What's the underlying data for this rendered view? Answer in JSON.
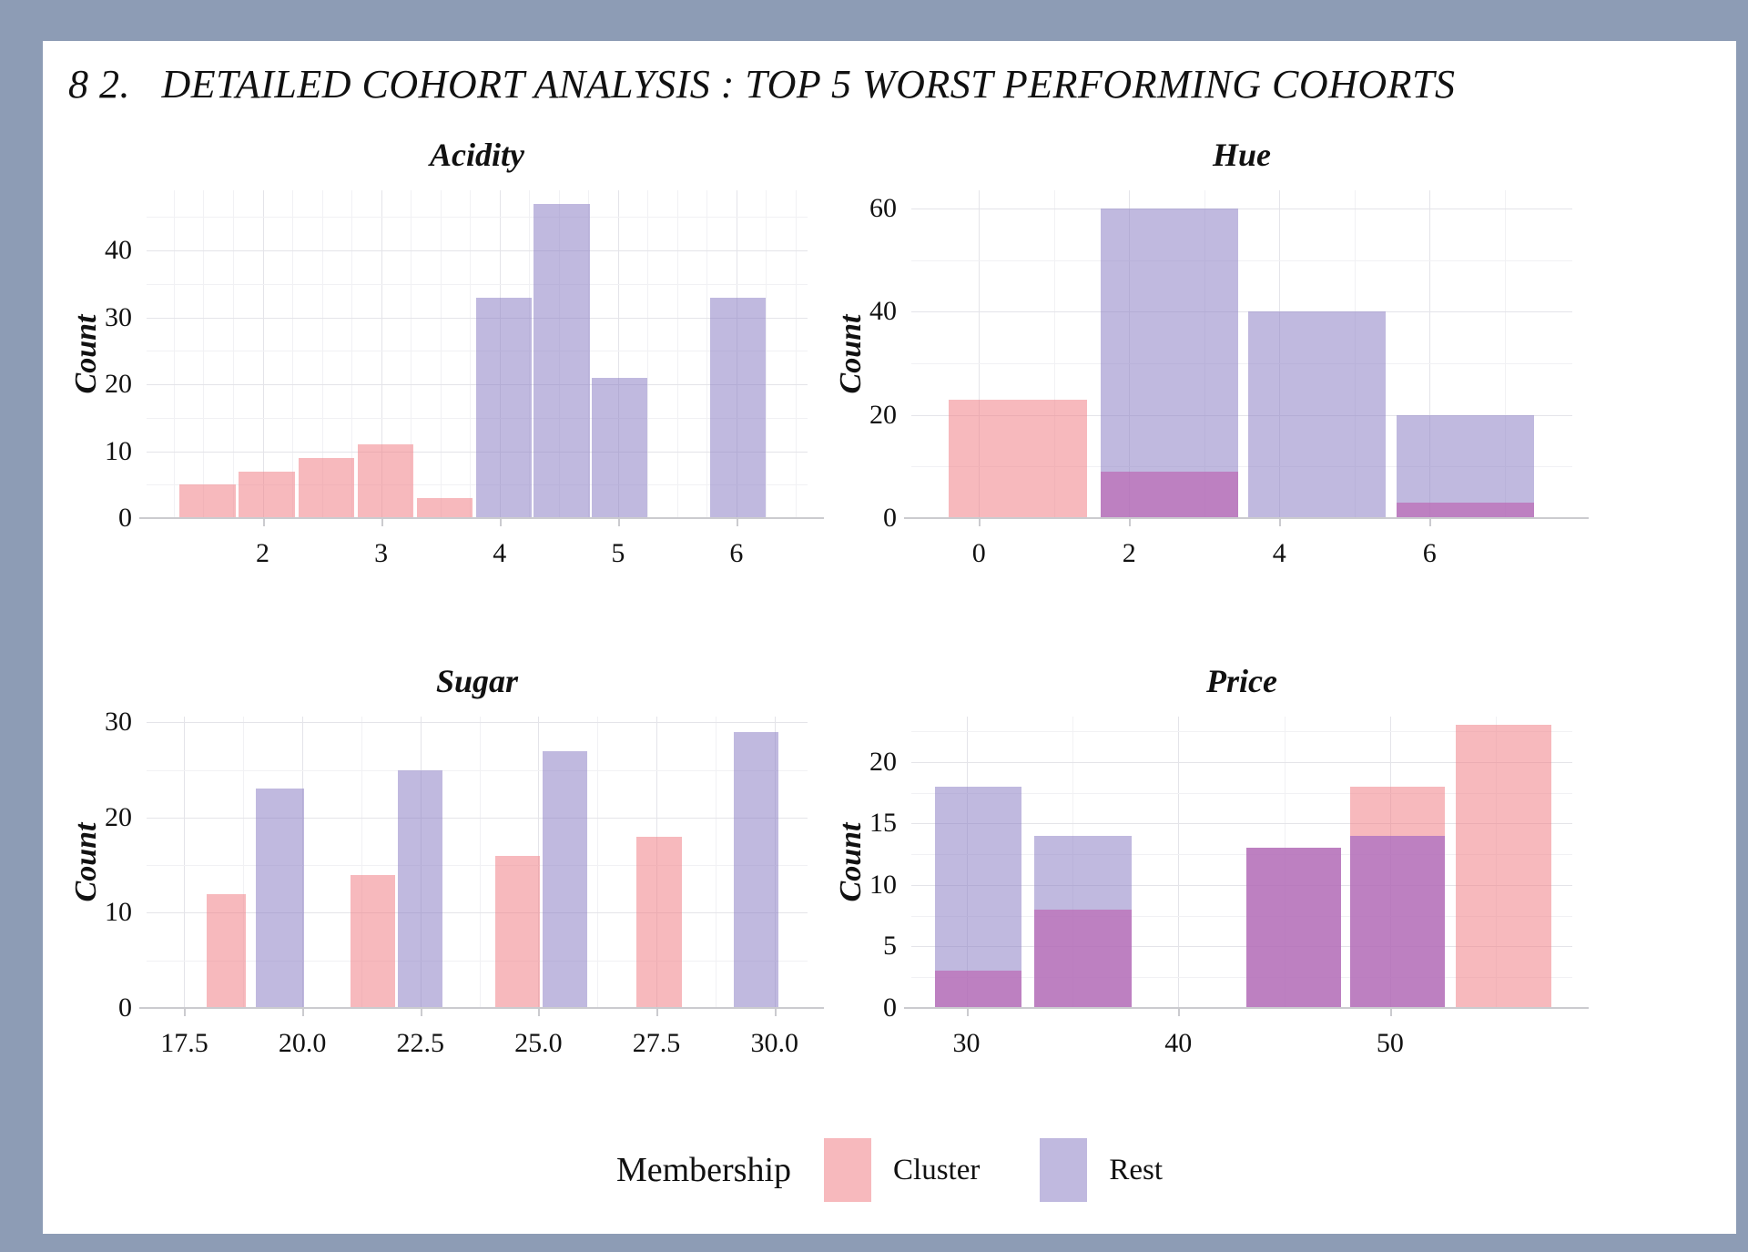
{
  "page": {
    "title": "8 2.   DETAILED COHORT ANALYSIS : TOP 5 WORST PERFORMING COHORTS"
  },
  "legend": {
    "title": "Membership",
    "position": "bottom",
    "items": [
      {
        "label": "Cluster",
        "series": "cluster"
      },
      {
        "label": "Rest",
        "series": "rest"
      }
    ]
  },
  "colors": {
    "page_background": "#8d9cb5",
    "paper": "#ffffff",
    "cluster_fill": "rgba(240,128,135,0.55)",
    "rest_fill": "rgba(140,128,197,0.55)",
    "overlap_fill": "rgba(177,106,182,0.85)",
    "cluster_solid": "#f7b9bd",
    "rest_solid": "#c0b9df",
    "overlap_solid": "#bd80c1",
    "grid_major": "#e4e4e9",
    "grid_minor": "#f1f1f4",
    "axis": "#cbcbcf",
    "text": "#111111"
  },
  "chart_data": [
    {
      "type": "bar",
      "title": "Acidity",
      "xlabel": "",
      "ylabel": "Count",
      "grid": true,
      "xlim": [
        1.02,
        6.6
      ],
      "ylim": [
        0,
        49
      ],
      "xticks": [
        "2",
        "3",
        "4",
        "5",
        "6"
      ],
      "yticks": [
        "0",
        "10",
        "20",
        "30",
        "40"
      ],
      "x_minor_step": 0.25,
      "y_minor_step": 5,
      "bars": [
        {
          "x0": 1.3,
          "x1": 1.77,
          "cluster": 5,
          "rest": null
        },
        {
          "x0": 1.8,
          "x1": 2.27,
          "cluster": 7,
          "rest": null
        },
        {
          "x0": 2.3,
          "x1": 2.77,
          "cluster": 9,
          "rest": null
        },
        {
          "x0": 2.8,
          "x1": 3.27,
          "cluster": 11,
          "rest": null
        },
        {
          "x0": 3.3,
          "x1": 3.77,
          "cluster": 3,
          "rest": null
        },
        {
          "x0": 3.8,
          "x1": 4.27,
          "cluster": null,
          "rest": 33
        },
        {
          "x0": 4.29,
          "x1": 4.76,
          "cluster": null,
          "rest": 47
        },
        {
          "x0": 4.78,
          "x1": 5.25,
          "cluster": null,
          "rest": 21
        },
        {
          "x0": 5.78,
          "x1": 6.25,
          "cluster": null,
          "rest": 33
        }
      ]
    },
    {
      "type": "bar",
      "title": "Hue",
      "xlabel": "",
      "ylabel": "Count",
      "grid": true,
      "xlim": [
        -0.9,
        7.9
      ],
      "ylim": [
        0,
        63.5
      ],
      "xticks": [
        "0",
        "2",
        "4",
        "6"
      ],
      "yticks": [
        "0",
        "20",
        "40",
        "60"
      ],
      "x_minor_step": 1,
      "y_minor_step": 10,
      "bars": [
        {
          "x0": -0.4,
          "x1": 1.44,
          "cluster": 23,
          "rest": null
        },
        {
          "x0": 1.62,
          "x1": 3.45,
          "cluster": 9,
          "rest": 60
        },
        {
          "x0": 3.58,
          "x1": 5.41,
          "cluster": null,
          "rest": 40
        },
        {
          "x0": 5.56,
          "x1": 7.39,
          "cluster": 3,
          "rest": 20
        }
      ]
    },
    {
      "type": "bar",
      "title": "Sugar",
      "xlabel": "",
      "ylabel": "Count",
      "grid": true,
      "xlim": [
        16.7,
        30.7
      ],
      "ylim": [
        0,
        30.6
      ],
      "xticks": [
        "17.5",
        "20.0",
        "22.5",
        "25.0",
        "27.5",
        "30.0"
      ],
      "yticks": [
        "0",
        "10",
        "20",
        "30"
      ],
      "x_minor_step": 1.25,
      "y_minor_step": 5,
      "bars": [
        {
          "x0": 17.97,
          "x1": 18.81,
          "cluster": 12,
          "rest": null
        },
        {
          "x0": 19.02,
          "x1": 20.03,
          "cluster": null,
          "rest": 23
        },
        {
          "x0": 21.01,
          "x1": 21.96,
          "cluster": 14,
          "rest": null
        },
        {
          "x0": 22.02,
          "x1": 22.97,
          "cluster": null,
          "rest": 25
        },
        {
          "x0": 24.08,
          "x1": 25.03,
          "cluster": 16,
          "rest": null
        },
        {
          "x0": 25.09,
          "x1": 26.04,
          "cluster": null,
          "rest": 27
        },
        {
          "x0": 27.08,
          "x1": 28.03,
          "cluster": 18,
          "rest": null
        },
        {
          "x0": 29.14,
          "x1": 30.09,
          "cluster": null,
          "rest": 29
        }
      ]
    },
    {
      "type": "bar",
      "title": "Price",
      "xlabel": "",
      "ylabel": "Count",
      "grid": true,
      "xlim": [
        27.4,
        58.6
      ],
      "ylim": [
        0,
        23.7
      ],
      "xticks": [
        "30",
        "40",
        "50"
      ],
      "yticks": [
        "0",
        "5",
        "10",
        "15",
        "20"
      ],
      "x_minor_step": 5,
      "y_minor_step": 2.5,
      "bars": [
        {
          "x0": 28.5,
          "x1": 32.6,
          "cluster": 3,
          "rest": 18
        },
        {
          "x0": 33.2,
          "x1": 37.8,
          "cluster": 8,
          "rest": 14
        },
        {
          "x0": 43.2,
          "x1": 47.7,
          "cluster": 13,
          "rest": 13
        },
        {
          "x0": 48.1,
          "x1": 52.6,
          "cluster": 18,
          "rest": 14
        },
        {
          "x0": 53.1,
          "x1": 57.6,
          "cluster": 23,
          "rest": null
        }
      ]
    }
  ]
}
